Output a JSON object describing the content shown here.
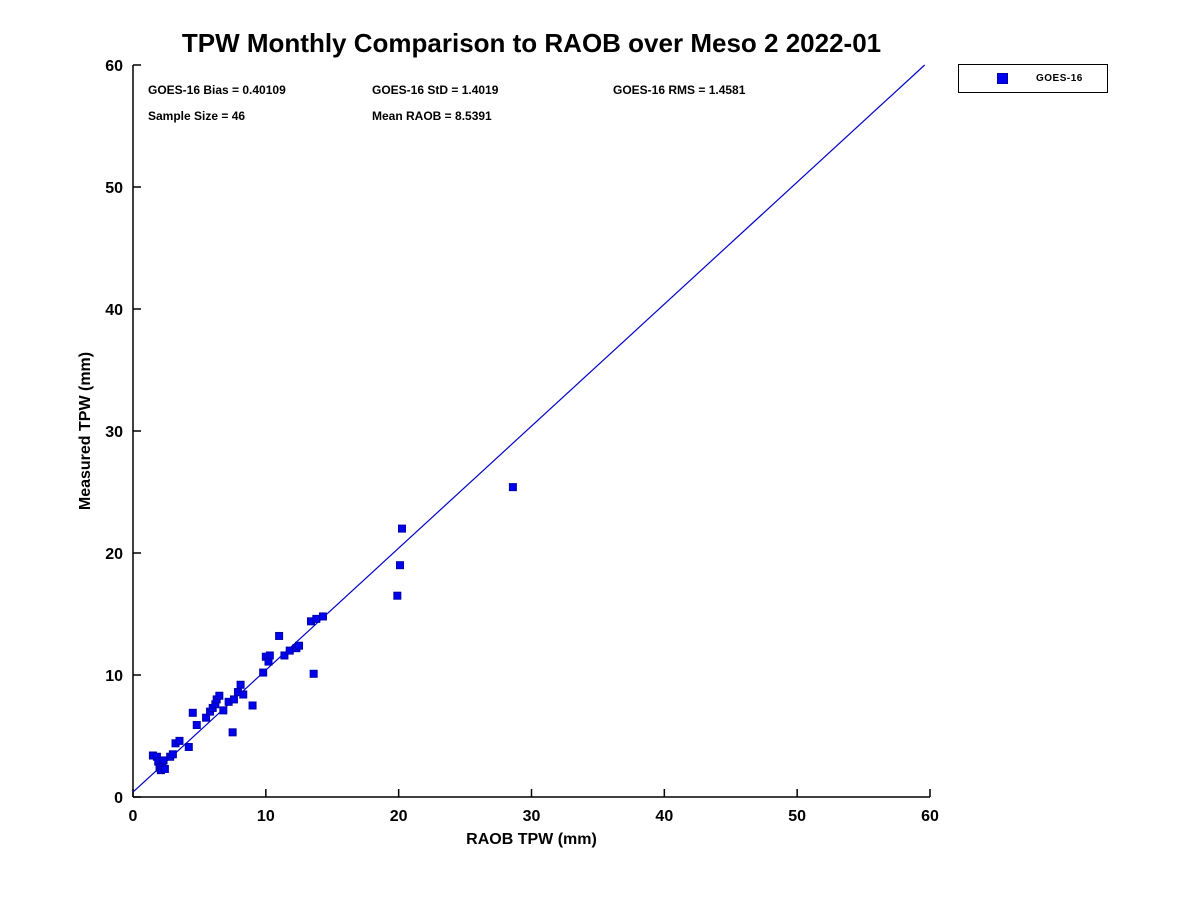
{
  "chart_data": {
    "type": "scatter",
    "title": "TPW Monthly Comparison to RAOB over Meso 2 2022-01",
    "xlabel": "RAOB TPW (mm)",
    "ylabel": "Measured TPW (mm)",
    "xlim": [
      0,
      60
    ],
    "ylim": [
      0,
      60
    ],
    "xticks": [
      0,
      10,
      20,
      30,
      40,
      50,
      60
    ],
    "yticks": [
      0,
      10,
      20,
      30,
      40,
      50,
      60
    ],
    "grid": false,
    "legend": {
      "label": "GOES-16",
      "position": "top-right-outside"
    },
    "marker_color": "#0000EE",
    "marker_edge_color": "#0000AA",
    "line_color": "#0000CC",
    "stats": {
      "bias": "GOES-16 Bias = 0.40109",
      "std": "GOES-16 StD = 1.4019",
      "rms": "GOES-16 RMS = 1.4581",
      "sample_size": "Sample Size = 46",
      "mean_raob": "Mean RAOB = 8.5391"
    },
    "fit_line": {
      "x": [
        0,
        59.6
      ],
      "y": [
        0.4,
        60
      ]
    },
    "series": [
      {
        "name": "GOES-16",
        "points": [
          [
            1.5,
            3.4
          ],
          [
            1.8,
            3.3
          ],
          [
            1.9,
            2.9
          ],
          [
            2.0,
            2.4
          ],
          [
            2.1,
            2.2
          ],
          [
            2.2,
            2.6
          ],
          [
            2.3,
            3.0
          ],
          [
            2.4,
            2.3
          ],
          [
            2.8,
            3.3
          ],
          [
            3.0,
            3.5
          ],
          [
            3.2,
            4.4
          ],
          [
            3.5,
            4.6
          ],
          [
            4.2,
            4.1
          ],
          [
            4.5,
            6.9
          ],
          [
            4.8,
            5.9
          ],
          [
            5.5,
            6.5
          ],
          [
            5.8,
            7.0
          ],
          [
            6.0,
            7.3
          ],
          [
            6.2,
            7.6
          ],
          [
            6.3,
            8.0
          ],
          [
            6.5,
            8.3
          ],
          [
            6.8,
            7.1
          ],
          [
            7.2,
            7.8
          ],
          [
            7.5,
            5.3
          ],
          [
            7.6,
            8.0
          ],
          [
            7.9,
            8.6
          ],
          [
            8.1,
            9.2
          ],
          [
            8.3,
            8.4
          ],
          [
            9.0,
            7.5
          ],
          [
            9.8,
            10.2
          ],
          [
            10.0,
            11.5
          ],
          [
            10.2,
            11.1
          ],
          [
            10.3,
            11.6
          ],
          [
            11.0,
            13.2
          ],
          [
            11.4,
            11.6
          ],
          [
            11.8,
            12.0
          ],
          [
            12.3,
            12.2
          ],
          [
            12.5,
            12.4
          ],
          [
            13.4,
            14.4
          ],
          [
            13.6,
            10.1
          ],
          [
            13.8,
            14.6
          ],
          [
            14.3,
            14.8
          ],
          [
            19.9,
            16.5
          ],
          [
            20.1,
            19.0
          ],
          [
            20.25,
            22.0
          ],
          [
            28.6,
            25.4
          ]
        ]
      }
    ]
  }
}
